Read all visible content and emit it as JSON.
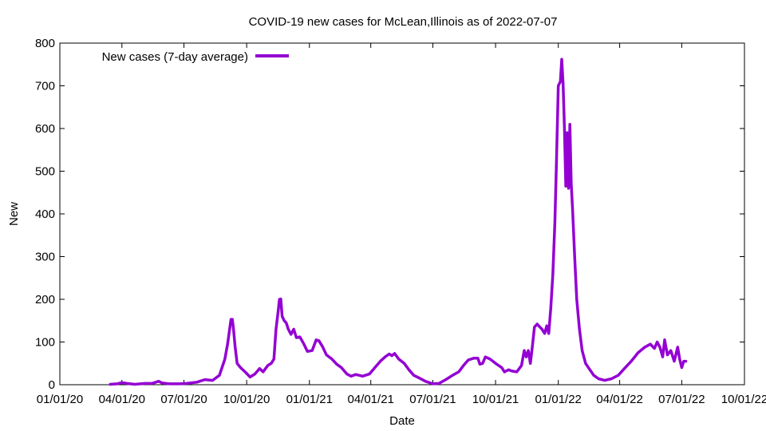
{
  "chart_data": {
    "type": "line",
    "title": "COVID-19 new cases for McLean,Illinois as of 2022-07-07",
    "xlabel": "Date",
    "ylabel": "New",
    "ylim": [
      0,
      800
    ],
    "yticks": [
      0,
      100,
      200,
      300,
      400,
      500,
      600,
      700,
      800
    ],
    "xlim": [
      "2020-01-01",
      "2022-10-01"
    ],
    "xticks": [
      {
        "date": "2020-01-01",
        "label": "01/01/20"
      },
      {
        "date": "2020-04-01",
        "label": "04/01/20"
      },
      {
        "date": "2020-07-01",
        "label": "07/01/20"
      },
      {
        "date": "2020-10-01",
        "label": "10/01/20"
      },
      {
        "date": "2021-01-01",
        "label": "01/01/21"
      },
      {
        "date": "2021-04-01",
        "label": "04/01/21"
      },
      {
        "date": "2021-07-01",
        "label": "07/01/21"
      },
      {
        "date": "2021-10-01",
        "label": "10/01/21"
      },
      {
        "date": "2022-01-01",
        "label": "01/01/22"
      },
      {
        "date": "2022-04-01",
        "label": "04/01/22"
      },
      {
        "date": "2022-07-01",
        "label": "07/01/22"
      },
      {
        "date": "2022-10-01",
        "label": "10/01/22"
      }
    ],
    "grid": false,
    "legend_position": "top-left",
    "series": [
      {
        "name": "New cases (7-day average)",
        "color": "#9400d3",
        "points": [
          [
            "2020-03-15",
            1
          ],
          [
            "2020-03-25",
            2
          ],
          [
            "2020-04-01",
            5
          ],
          [
            "2020-04-08",
            3
          ],
          [
            "2020-04-20",
            1
          ],
          [
            "2020-05-05",
            3
          ],
          [
            "2020-05-15",
            3
          ],
          [
            "2020-05-25",
            8
          ],
          [
            "2020-05-30",
            4
          ],
          [
            "2020-06-10",
            2
          ],
          [
            "2020-06-25",
            2
          ],
          [
            "2020-07-05",
            3
          ],
          [
            "2020-07-20",
            6
          ],
          [
            "2020-08-01",
            12
          ],
          [
            "2020-08-12",
            10
          ],
          [
            "2020-08-22",
            22
          ],
          [
            "2020-08-30",
            60
          ],
          [
            "2020-09-03",
            95
          ],
          [
            "2020-09-06",
            130
          ],
          [
            "2020-09-08",
            153
          ],
          [
            "2020-09-10",
            153
          ],
          [
            "2020-09-12",
            125
          ],
          [
            "2020-09-14",
            90
          ],
          [
            "2020-09-17",
            50
          ],
          [
            "2020-09-22",
            40
          ],
          [
            "2020-09-30",
            28
          ],
          [
            "2020-10-06",
            18
          ],
          [
            "2020-10-13",
            25
          ],
          [
            "2020-10-20",
            38
          ],
          [
            "2020-10-25",
            30
          ],
          [
            "2020-11-01",
            45
          ],
          [
            "2020-11-06",
            50
          ],
          [
            "2020-11-10",
            60
          ],
          [
            "2020-11-13",
            130
          ],
          [
            "2020-11-16",
            170
          ],
          [
            "2020-11-18",
            200
          ],
          [
            "2020-11-20",
            201
          ],
          [
            "2020-11-22",
            160
          ],
          [
            "2020-11-25",
            150
          ],
          [
            "2020-11-28",
            145
          ],
          [
            "2020-12-01",
            130
          ],
          [
            "2020-12-05",
            118
          ],
          [
            "2020-12-09",
            130
          ],
          [
            "2020-12-13",
            110
          ],
          [
            "2020-12-18",
            112
          ],
          [
            "2020-12-24",
            95
          ],
          [
            "2020-12-29",
            78
          ],
          [
            "2021-01-05",
            80
          ],
          [
            "2021-01-11",
            105
          ],
          [
            "2021-01-15",
            103
          ],
          [
            "2021-01-20",
            90
          ],
          [
            "2021-01-26",
            70
          ],
          [
            "2021-02-03",
            60
          ],
          [
            "2021-02-10",
            48
          ],
          [
            "2021-02-17",
            40
          ],
          [
            "2021-02-25",
            25
          ],
          [
            "2021-03-03",
            20
          ],
          [
            "2021-03-10",
            24
          ],
          [
            "2021-03-20",
            20
          ],
          [
            "2021-03-30",
            25
          ],
          [
            "2021-04-08",
            42
          ],
          [
            "2021-04-15",
            55
          ],
          [
            "2021-04-22",
            65
          ],
          [
            "2021-04-28",
            72
          ],
          [
            "2021-05-02",
            68
          ],
          [
            "2021-05-06",
            73
          ],
          [
            "2021-05-12",
            60
          ],
          [
            "2021-05-20",
            50
          ],
          [
            "2021-05-27",
            35
          ],
          [
            "2021-06-03",
            22
          ],
          [
            "2021-06-12",
            15
          ],
          [
            "2021-06-20",
            8
          ],
          [
            "2021-07-01",
            2
          ],
          [
            "2021-07-10",
            3
          ],
          [
            "2021-07-20",
            12
          ],
          [
            "2021-07-30",
            22
          ],
          [
            "2021-08-08",
            30
          ],
          [
            "2021-08-15",
            45
          ],
          [
            "2021-08-22",
            58
          ],
          [
            "2021-08-30",
            62
          ],
          [
            "2021-09-05",
            62
          ],
          [
            "2021-09-08",
            48
          ],
          [
            "2021-09-12",
            50
          ],
          [
            "2021-09-16",
            65
          ],
          [
            "2021-09-23",
            60
          ],
          [
            "2021-10-01",
            50
          ],
          [
            "2021-10-10",
            40
          ],
          [
            "2021-10-14",
            30
          ],
          [
            "2021-10-20",
            35
          ],
          [
            "2021-10-25",
            32
          ],
          [
            "2021-11-01",
            30
          ],
          [
            "2021-11-08",
            45
          ],
          [
            "2021-11-12",
            80
          ],
          [
            "2021-11-15",
            65
          ],
          [
            "2021-11-18",
            80
          ],
          [
            "2021-11-21",
            50
          ],
          [
            "2021-11-24",
            90
          ],
          [
            "2021-11-27",
            135
          ],
          [
            "2021-12-01",
            142
          ],
          [
            "2021-12-05",
            135
          ],
          [
            "2021-12-08",
            130
          ],
          [
            "2021-12-12",
            120
          ],
          [
            "2021-12-15",
            138
          ],
          [
            "2021-12-18",
            120
          ],
          [
            "2021-12-21",
            180
          ],
          [
            "2021-12-24",
            260
          ],
          [
            "2021-12-27",
            380
          ],
          [
            "2021-12-29",
            500
          ],
          [
            "2022-01-01",
            700
          ],
          [
            "2022-01-04",
            710
          ],
          [
            "2022-01-06",
            762
          ],
          [
            "2022-01-08",
            705
          ],
          [
            "2022-01-10",
            600
          ],
          [
            "2022-01-12",
            465
          ],
          [
            "2022-01-14",
            590
          ],
          [
            "2022-01-16",
            460
          ],
          [
            "2022-01-18",
            610
          ],
          [
            "2022-01-20",
            470
          ],
          [
            "2022-01-22",
            410
          ],
          [
            "2022-01-25",
            300
          ],
          [
            "2022-01-28",
            200
          ],
          [
            "2022-02-01",
            130
          ],
          [
            "2022-02-05",
            80
          ],
          [
            "2022-02-10",
            50
          ],
          [
            "2022-02-15",
            38
          ],
          [
            "2022-02-22",
            22
          ],
          [
            "2022-03-01",
            14
          ],
          [
            "2022-03-10",
            10
          ],
          [
            "2022-03-20",
            14
          ],
          [
            "2022-03-30",
            22
          ],
          [
            "2022-04-08",
            38
          ],
          [
            "2022-04-18",
            55
          ],
          [
            "2022-04-28",
            75
          ],
          [
            "2022-05-08",
            88
          ],
          [
            "2022-05-16",
            95
          ],
          [
            "2022-05-22",
            85
          ],
          [
            "2022-05-26",
            100
          ],
          [
            "2022-05-30",
            88
          ],
          [
            "2022-06-03",
            65
          ],
          [
            "2022-06-06",
            105
          ],
          [
            "2022-06-10",
            70
          ],
          [
            "2022-06-15",
            80
          ],
          [
            "2022-06-20",
            55
          ],
          [
            "2022-06-25",
            88
          ],
          [
            "2022-06-28",
            60
          ],
          [
            "2022-07-01",
            40
          ],
          [
            "2022-07-04",
            55
          ],
          [
            "2022-07-07",
            55
          ]
        ]
      }
    ]
  }
}
